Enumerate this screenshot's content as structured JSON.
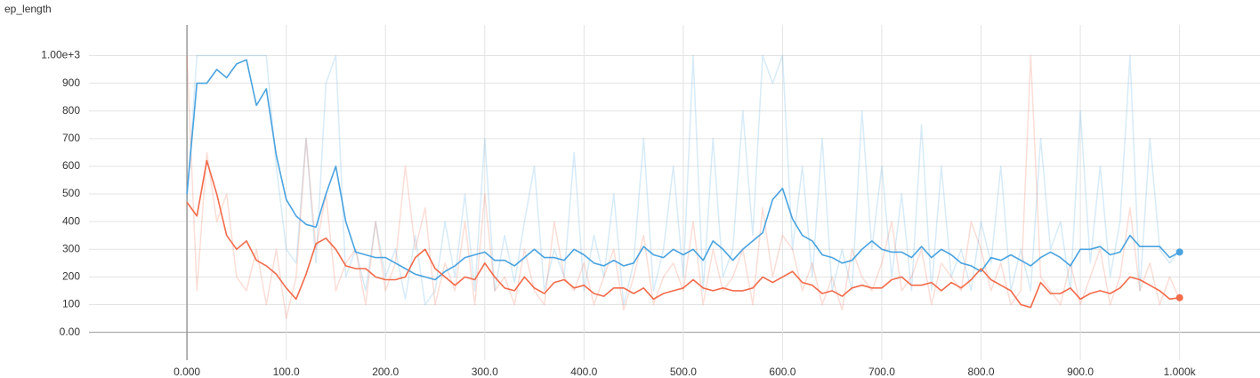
{
  "chart_data": {
    "type": "line",
    "title": "ep_length",
    "x": [
      0,
      10,
      20,
      30,
      40,
      50,
      60,
      70,
      80,
      90,
      100,
      110,
      120,
      130,
      140,
      150,
      160,
      170,
      180,
      190,
      200,
      210,
      220,
      230,
      240,
      250,
      260,
      270,
      280,
      290,
      300,
      310,
      320,
      330,
      340,
      350,
      360,
      370,
      380,
      390,
      400,
      410,
      420,
      430,
      440,
      450,
      460,
      470,
      480,
      490,
      500,
      510,
      520,
      530,
      540,
      550,
      560,
      570,
      580,
      590,
      600,
      610,
      620,
      630,
      640,
      650,
      660,
      670,
      680,
      690,
      700,
      710,
      720,
      730,
      740,
      750,
      760,
      770,
      780,
      790,
      800,
      810,
      820,
      830,
      840,
      850,
      860,
      870,
      880,
      890,
      900,
      910,
      920,
      930,
      940,
      950,
      960,
      970,
      980,
      990,
      1000
    ],
    "series": [
      {
        "color": "#4aa3df",
        "opacity": 0.22,
        "values": [
          480,
          1000,
          1000,
          1000,
          1000,
          1000,
          1000,
          1000,
          1000,
          600,
          300,
          250,
          700,
          250,
          900,
          1000,
          200,
          300,
          150,
          400,
          200,
          300,
          120,
          350,
          100,
          150,
          400,
          200,
          500,
          150,
          700,
          150,
          350,
          180,
          400,
          600,
          150,
          300,
          200,
          650,
          150,
          350,
          200,
          500,
          100,
          250,
          700,
          150,
          300,
          600,
          200,
          1000,
          150,
          700,
          200,
          300,
          800,
          350,
          1000,
          900,
          1000,
          300,
          600,
          200,
          700,
          150,
          300,
          150,
          800,
          300,
          600,
          200,
          500,
          150,
          750,
          150,
          600,
          200,
          300,
          150,
          400,
          250,
          600,
          150,
          300,
          150,
          700,
          300,
          400,
          150,
          800,
          250,
          600,
          200,
          400,
          1000,
          150,
          700,
          300,
          250,
          300
        ]
      },
      {
        "color": "#f26b4a",
        "opacity": 0.22,
        "values": [
          1000,
          150,
          650,
          400,
          500,
          200,
          150,
          300,
          100,
          300,
          50,
          200,
          700,
          300,
          500,
          150,
          250,
          300,
          100,
          400,
          150,
          250,
          600,
          300,
          450,
          100,
          250,
          150,
          400,
          100,
          500,
          150,
          200,
          100,
          300,
          150,
          100,
          400,
          200,
          150,
          250,
          100,
          200,
          300,
          80,
          200,
          350,
          100,
          200,
          250,
          150,
          400,
          100,
          300,
          150,
          200,
          300,
          100,
          450,
          200,
          350,
          300,
          150,
          250,
          100,
          200,
          80,
          300,
          200,
          150,
          250,
          400,
          150,
          200,
          300,
          100,
          250,
          200,
          150,
          400,
          300,
          150,
          250,
          100,
          150,
          1000,
          200,
          150,
          100,
          250,
          100,
          200,
          300,
          100,
          200,
          450,
          150,
          250,
          100,
          200,
          120
        ]
      },
      {
        "color": "#4aa3df",
        "opacity": 1,
        "marker_last": true,
        "values": [
          500,
          900,
          900,
          950,
          920,
          970,
          985,
          820,
          880,
          640,
          480,
          420,
          390,
          380,
          500,
          600,
          400,
          290,
          280,
          270,
          270,
          250,
          230,
          210,
          200,
          190,
          220,
          240,
          270,
          280,
          290,
          260,
          260,
          240,
          270,
          300,
          270,
          270,
          260,
          300,
          280,
          250,
          240,
          260,
          240,
          250,
          310,
          280,
          270,
          300,
          280,
          300,
          260,
          330,
          300,
          260,
          300,
          330,
          360,
          480,
          520,
          410,
          350,
          330,
          280,
          270,
          250,
          260,
          300,
          330,
          300,
          290,
          290,
          270,
          310,
          270,
          300,
          280,
          250,
          240,
          220,
          270,
          260,
          280,
          260,
          240,
          270,
          290,
          270,
          240,
          300,
          300,
          310,
          280,
          290,
          350,
          310,
          310,
          310,
          270,
          290
        ]
      },
      {
        "color": "#f26b4a",
        "opacity": 1,
        "marker_last": true,
        "values": [
          470,
          420,
          620,
          500,
          350,
          300,
          330,
          260,
          240,
          210,
          160,
          120,
          210,
          320,
          340,
          300,
          240,
          230,
          230,
          200,
          190,
          190,
          200,
          270,
          300,
          230,
          200,
          170,
          200,
          190,
          250,
          200,
          160,
          150,
          200,
          160,
          140,
          180,
          190,
          160,
          170,
          140,
          130,
          160,
          160,
          140,
          160,
          120,
          140,
          150,
          160,
          190,
          160,
          150,
          160,
          150,
          150,
          160,
          200,
          180,
          200,
          220,
          180,
          170,
          140,
          150,
          130,
          160,
          170,
          160,
          160,
          190,
          200,
          170,
          170,
          180,
          150,
          180,
          160,
          190,
          230,
          190,
          170,
          150,
          100,
          90,
          180,
          140,
          140,
          160,
          120,
          140,
          150,
          140,
          160,
          200,
          190,
          170,
          150,
          120,
          125
        ]
      }
    ],
    "xlim": [
      -98.7,
      1081
    ],
    "ylim": [
      -101,
      1111
    ],
    "xticks": [
      {
        "value": 0,
        "label": "0.000"
      },
      {
        "value": 100,
        "label": "100.0"
      },
      {
        "value": 200,
        "label": "200.0"
      },
      {
        "value": 300,
        "label": "300.0"
      },
      {
        "value": 400,
        "label": "400.0"
      },
      {
        "value": 500,
        "label": "500.0"
      },
      {
        "value": 600,
        "label": "600.0"
      },
      {
        "value": 700,
        "label": "700.0"
      },
      {
        "value": 800,
        "label": "800.0"
      },
      {
        "value": 900,
        "label": "900.0"
      },
      {
        "value": 1000,
        "label": "1.000k"
      }
    ],
    "yticks": [
      {
        "value": 0,
        "label": "0.00"
      },
      100,
      200,
      300,
      400,
      500,
      600,
      700,
      800,
      900,
      {
        "value": 1000,
        "label": "1.00e+3"
      }
    ],
    "grid": true
  }
}
